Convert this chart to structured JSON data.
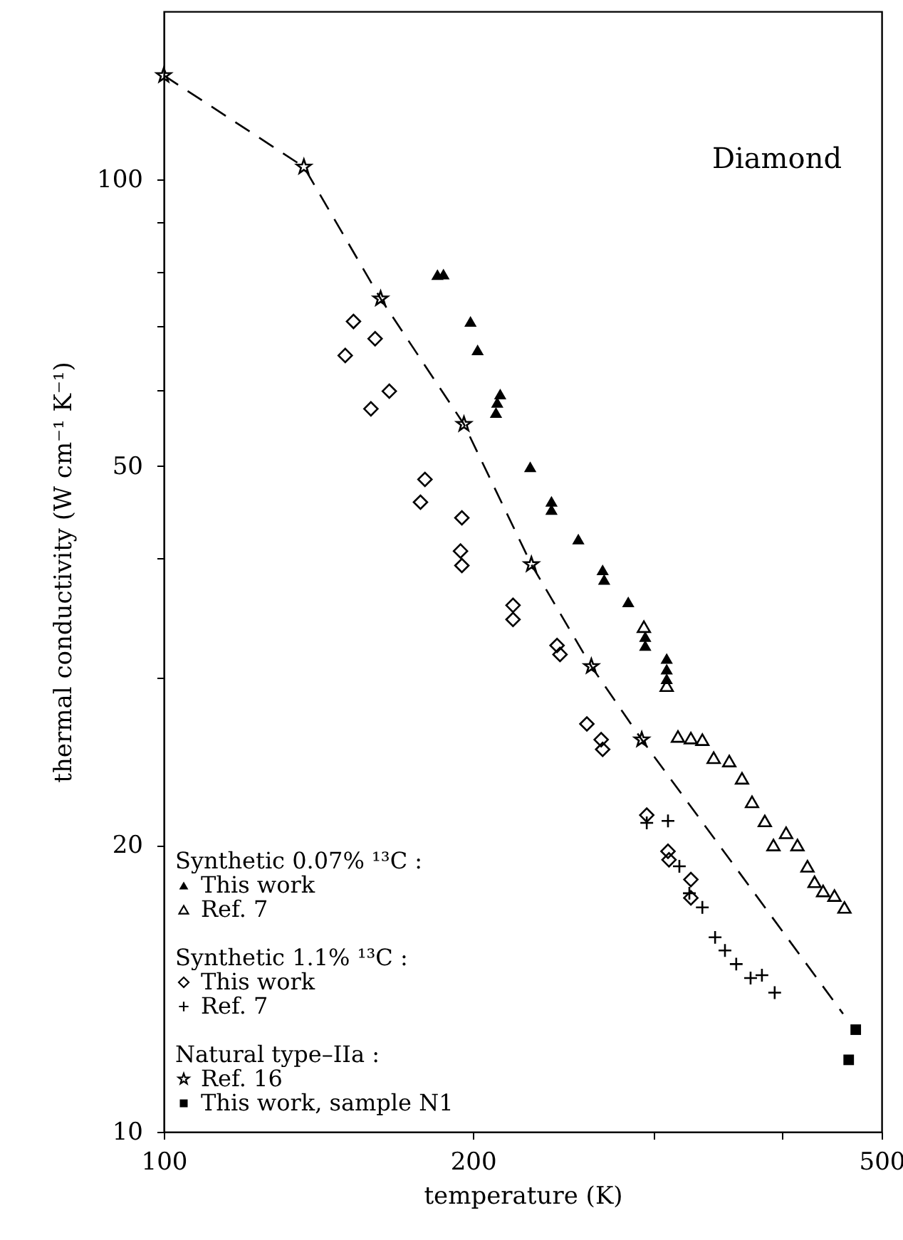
{
  "chart_data": {
    "type": "scatter",
    "xlabel": "temperature (K)",
    "ylabel": "thermal conductivity (W cm⁻¹ K⁻¹)",
    "annotations": [
      "Diamond",
      "Synthetic 0.07% ¹³C :",
      "Synthetic 1.1% ¹³C :",
      "Natural type–IIa :"
    ],
    "log": "xy",
    "xlim": [
      100,
      500
    ],
    "xticks": [
      100,
      200,
      {
        "value": 300,
        "label": null
      },
      {
        "value": 400,
        "label": null
      },
      500
    ],
    "ylim": [
      10,
      150
    ],
    "yticks": [
      10,
      20,
      {
        "value": 30,
        "label": null
      },
      {
        "value": 40,
        "label": null
      },
      50,
      {
        "value": 60,
        "label": null
      },
      {
        "value": 70,
        "label": null
      },
      {
        "value": 80,
        "label": null
      },
      {
        "value": 90,
        "label": null
      },
      100
    ],
    "grid": false,
    "legend": "bottom left",
    "series": [
      {
        "name": "This work",
        "marker": "triangle",
        "color": "#000000",
        "x": [
          184.7,
          187.2,
          198.9,
          202.1,
          212.6,
          211.2,
          210.6,
          227.4,
          238.5,
          238.5,
          253.3,
          267.5,
          268.4,
          283.3,
          294.3,
          294.3,
          308.8,
          308.8,
          308.8
        ],
        "values": [
          79.4,
          79.5,
          70.9,
          66.2,
          59.5,
          58.3,
          56.9,
          49.9,
          45.9,
          45.0,
          41.9,
          38.9,
          38.0,
          36.0,
          33.1,
          32.4,
          31.4,
          30.6,
          29.9
        ]
      },
      {
        "name": "Ref. 7",
        "marker": "triangle",
        "color": "#000000",
        "x": [
          293.4,
          308.8,
          316.7,
          326.0,
          334.5,
          343.1,
          355.3,
          365.6,
          373.9,
          384.8,
          392.3,
          403.6,
          414.0,
          423.4,
          430.2,
          438.5,
          449.8,
          460.0
        ],
        "values": [
          33.9,
          29.4,
          26.0,
          25.9,
          25.8,
          24.7,
          24.5,
          23.5,
          22.2,
          21.2,
          20.0,
          20.6,
          20.0,
          19.0,
          18.3,
          17.9,
          17.7,
          17.2
        ]
      },
      {
        "name": "This work",
        "marker": "diamond",
        "color": "#000000",
        "x": [
          153.0,
          160.6,
          150.2,
          165.8,
          159.1,
          179.6,
          177.8,
          195.1,
          194.5,
          195.1,
          218.8,
          218.8,
          241.5,
          243.1,
          258.2,
          266.6,
          267.5,
          295.3,
          309.7,
          310.4,
          326.0,
          326.0
        ],
        "values": [
          70.9,
          68.0,
          65.3,
          59.9,
          57.4,
          48.4,
          45.8,
          44.1,
          40.7,
          39.3,
          35.7,
          34.5,
          32.4,
          31.7,
          26.8,
          25.8,
          25.2,
          21.5,
          19.7,
          19.3,
          18.4,
          17.6
        ]
      },
      {
        "name": "Ref. 7",
        "marker": "cross",
        "color": "#000000",
        "x": [
          295.3,
          309.7,
          317.7,
          324.9,
          334.5,
          344.2,
          351.9,
          360.9,
          372.7,
          382.3,
          393.4
        ],
        "values": [
          21.1,
          21.2,
          19.0,
          17.8,
          17.2,
          16.0,
          15.5,
          15.0,
          14.5,
          14.6,
          14.0
        ]
      },
      {
        "name": "Ref. 16",
        "marker": "star",
        "color": "#000000",
        "x": [
          100,
          136.9,
          162.6,
          196.0,
          228.0,
          260.8,
          292.0
        ],
        "values": [
          128.5,
          103,
          74.9,
          55.3,
          39.4,
          30.8,
          25.8
        ]
      },
      {
        "name": "This work, sample N1",
        "marker": "square",
        "color": "#000000",
        "x": [
          471.8,
          464.4
        ],
        "values": [
          12.8,
          11.9
        ]
      },
      {
        "type": "line",
        "marker": "none",
        "line_style": "dashed",
        "color": "#000000",
        "x": [
          100,
          136.9,
          162.6,
          196.0,
          228.0,
          260.8,
          292.0,
          458.6
        ],
        "values": [
          128.5,
          103,
          74.9,
          55.3,
          39.4,
          30.8,
          25.8,
          13.3
        ]
      }
    ]
  }
}
